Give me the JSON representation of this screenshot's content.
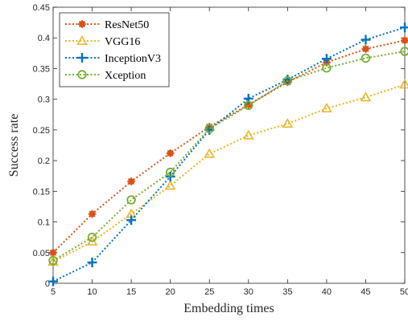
{
  "chart_data": {
    "type": "line",
    "title": "",
    "xlabel": "Embedding times",
    "ylabel": "Success rate",
    "xlim": [
      5,
      50
    ],
    "ylim": [
      0,
      0.45
    ],
    "x": [
      5,
      10,
      15,
      20,
      25,
      30,
      35,
      40,
      45,
      50
    ],
    "xticks": [
      "5",
      "10",
      "15",
      "20",
      "25",
      "30",
      "35",
      "40",
      "45",
      "50"
    ],
    "yticks": [
      "0",
      "0.05",
      "0.1",
      "0.15",
      "0.2",
      "0.25",
      "0.3",
      "0.35",
      "0.4",
      "0.45"
    ],
    "grid": false,
    "legend_position": "top-left",
    "series": [
      {
        "name": "ResNet50",
        "color": "#D95319",
        "marker": "asterisk",
        "values": [
          0.05,
          0.113,
          0.166,
          0.212,
          0.255,
          0.291,
          0.328,
          0.36,
          0.382,
          0.396
        ]
      },
      {
        "name": "VGG16",
        "color": "#EDB120",
        "marker": "triangle",
        "values": [
          0.035,
          0.068,
          0.113,
          0.159,
          0.211,
          0.241,
          0.26,
          0.285,
          0.303,
          0.324
        ]
      },
      {
        "name": "InceptionV3",
        "color": "#0072BD",
        "marker": "plus",
        "values": [
          0.003,
          0.034,
          0.103,
          0.174,
          0.25,
          0.301,
          0.332,
          0.366,
          0.397,
          0.417
        ]
      },
      {
        "name": "Xception",
        "color": "#77AC30",
        "marker": "circle",
        "values": [
          0.037,
          0.075,
          0.136,
          0.181,
          0.252,
          0.29,
          0.33,
          0.351,
          0.367,
          0.378
        ]
      }
    ]
  }
}
